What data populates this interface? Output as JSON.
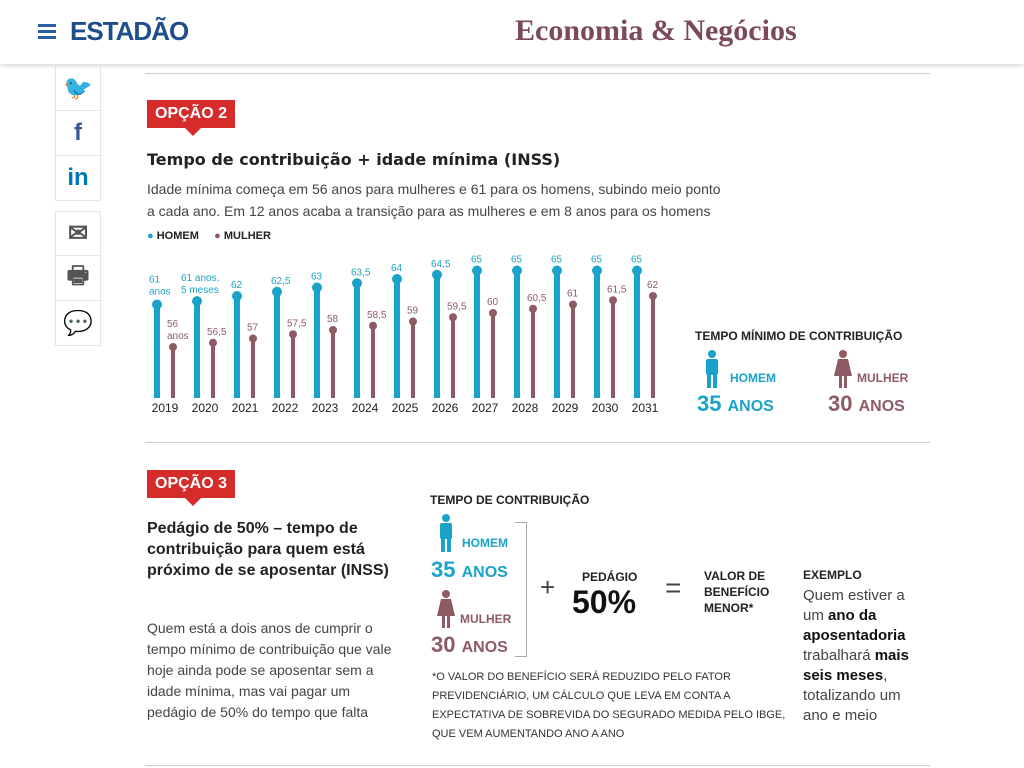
{
  "header": {
    "logo": "ESTADÃO",
    "section": "Economia & Negócios"
  },
  "share": [
    {
      "icon": "twitter-icon",
      "glyph": "🐦"
    },
    {
      "icon": "facebook-icon",
      "glyph": "f"
    },
    {
      "icon": "linkedin-icon",
      "glyph": "in"
    },
    {
      "icon": "email-icon",
      "glyph": "✉"
    },
    {
      "icon": "print-icon",
      "glyph": "🖶"
    },
    {
      "icon": "comments-icon",
      "glyph": "💬"
    }
  ],
  "colors": {
    "homem": "#1aa3c8",
    "mulher": "#8e5a63",
    "tag": "#d52b2b"
  },
  "opcao2": {
    "tag": "OPÇÃO 2",
    "title": "Tempo de contribuição + idade mínima (INSS)",
    "desc1": "Idade mínima começa em 56 anos para mulheres e 61 para os homens, subindo meio ponto",
    "desc2": "a cada ano. Em 12 anos acaba a transição para as mulheres e em 8 anos para os homens",
    "tempo_title": "TEMPO MÍNIMO DE CONTRIBUIÇÃO",
    "homem": "HOMEM",
    "mulher": "MULHER",
    "homem_anos": "35",
    "mulher_anos": "30",
    "anos": "ANOS"
  },
  "chart_data": {
    "type": "bar",
    "categories": [
      "2019",
      "2020",
      "2021",
      "2022",
      "2023",
      "2024",
      "2025",
      "2026",
      "2027",
      "2028",
      "2029",
      "2030",
      "2031"
    ],
    "series": [
      {
        "name": "HOMEM",
        "values": [
          61,
          61.4,
          62,
          62.5,
          63,
          63.5,
          64,
          64.5,
          65,
          65,
          65,
          65,
          65
        ],
        "labels": [
          "61\nanos",
          "61 anos,\n5 meses",
          "62",
          "62,5",
          "63",
          "63,5",
          "64",
          "64,5",
          "65",
          "65",
          "65",
          "65",
          "65"
        ]
      },
      {
        "name": "MULHER",
        "values": [
          56,
          56.5,
          57,
          57.5,
          58,
          58.5,
          59,
          59.5,
          60,
          60.5,
          61,
          61.5,
          62
        ],
        "labels": [
          "56\nanos",
          "56,5",
          "57",
          "57,5",
          "58",
          "58,5",
          "59",
          "59,5",
          "60",
          "60,5",
          "61",
          "61,5",
          "62"
        ]
      }
    ],
    "legend": "top-left"
  },
  "opcao3": {
    "tag": "OPÇÃO 3",
    "title": "Pedágio de 50% – tempo de contribuição para quem está próximo de se aposentar (INSS)",
    "desc": "Quem está a dois anos de cumprir o tempo mínimo de contribuição que vale hoje ainda pode se aposentar sem a idade mínima, mas vai pagar um pedágio de 50% do tempo que falta",
    "tempo_title": "TEMPO DE CONTRIBUIÇÃO",
    "homem": "HOMEM",
    "mulher": "MULHER",
    "homem_anos": "35",
    "mulher_anos": "30",
    "anos": "ANOS",
    "plus": "+",
    "pedagio": "PEDÁGIO",
    "pct": "50%",
    "equals": "=",
    "valor": "VALOR DE BENEFÍCIO MENOR*",
    "exemplo": "EXEMPLO",
    "ex1": "Quem estiver a um ",
    "ex2": "ano da aposentadoria",
    "ex3": " trabalhará ",
    "ex4": "mais seis meses",
    "ex5": ", totalizando um ano e meio",
    "note": "*O VALOR DO BENEFÍCIO SERÁ REDUZIDO PELO FATOR PREVIDENCIÁRIO, UM CÁLCULO QUE LEVA EM CONTA A EXPECTATIVA DE SOBREVIDA DO SEGURADO MEDIDA PELO IBGE, QUE VEM AUMENTANDO ANO A ANO"
  }
}
